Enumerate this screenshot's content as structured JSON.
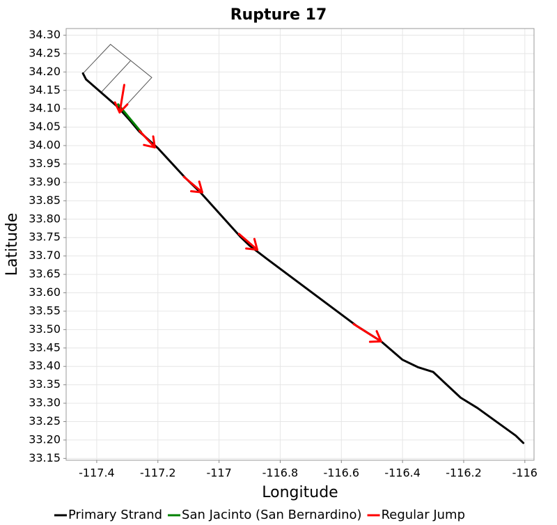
{
  "chart_data": {
    "type": "line",
    "title": "Rupture 17",
    "xlabel": "Longitude",
    "ylabel": "Latitude",
    "xlim": [
      -117.5,
      -115.97
    ],
    "ylim": [
      33.145,
      34.318
    ],
    "x_ticks": [
      -117.4,
      -117.2,
      -117.0,
      -116.8,
      -116.6,
      -116.4,
      -116.2,
      -116.0
    ],
    "x_tick_labels": [
      "-117.4",
      "-117.2",
      "-117",
      "-116.8",
      "-116.6",
      "-116.4",
      "-116.2",
      "-116"
    ],
    "y_ticks": [
      33.15,
      33.2,
      33.25,
      33.3,
      33.35,
      33.4,
      33.45,
      33.5,
      33.55,
      33.6,
      33.65,
      33.7,
      33.75,
      33.8,
      33.85,
      33.9,
      33.95,
      34.0,
      34.05,
      34.1,
      34.15,
      34.2,
      34.25,
      34.3
    ],
    "y_tick_labels": [
      "33.15",
      "33.20",
      "33.25",
      "33.30",
      "33.35",
      "33.40",
      "33.45",
      "33.50",
      "33.55",
      "33.60",
      "33.65",
      "33.70",
      "33.75",
      "33.80",
      "33.85",
      "33.90",
      "33.95",
      "34.00",
      "34.05",
      "34.10",
      "34.15",
      "34.20",
      "34.25",
      "34.30"
    ],
    "grid": true,
    "legend_placement": "bottom",
    "series": [
      {
        "name": "Primary Strand",
        "color": "#000000",
        "points": [
          [
            -117.445,
            34.196
          ],
          [
            -117.435,
            34.18
          ],
          [
            -117.33,
            34.104
          ],
          [
            -117.292,
            34.069
          ],
          [
            -117.262,
            34.039
          ],
          [
            -117.2,
            33.993
          ],
          [
            -117.11,
            33.912
          ],
          [
            -117.06,
            33.872
          ],
          [
            -116.93,
            33.752
          ],
          [
            -116.9,
            33.728
          ],
          [
            -116.84,
            33.69
          ],
          [
            -116.55,
            33.51
          ],
          [
            -116.47,
            33.468
          ],
          [
            -116.4,
            33.418
          ],
          [
            -116.35,
            33.398
          ],
          [
            -116.3,
            33.385
          ],
          [
            -116.21,
            33.315
          ],
          [
            -116.155,
            33.287
          ],
          [
            -116.09,
            33.248
          ],
          [
            -116.03,
            33.212
          ],
          [
            -116.005,
            33.192
          ]
        ]
      },
      {
        "name": "San Jacinto (San Bernardino)",
        "color": "#008000",
        "points": [
          [
            -117.33,
            34.112
          ],
          [
            -117.255,
            34.037
          ]
        ]
      },
      {
        "name": "Regular Jump",
        "color": "#ff0000",
        "jumps": [
          [
            [
              -117.31,
              34.165
            ],
            [
              -117.325,
              34.09
            ]
          ],
          [
            [
              -117.26,
              34.04
            ],
            [
              -117.21,
              33.995
            ]
          ],
          [
            [
              -117.115,
              33.915
            ],
            [
              -117.055,
              33.873
            ]
          ],
          [
            [
              -116.935,
              33.76
            ],
            [
              -116.875,
              33.717
            ]
          ],
          [
            [
              -116.56,
              33.515
            ],
            [
              -116.47,
              33.468
            ]
          ]
        ]
      }
    ],
    "outlines": [
      [
        [
          -117.445,
          34.196
        ],
        [
          -117.355,
          34.275
        ],
        [
          -117.22,
          34.185
        ],
        [
          -117.31,
          34.104
        ]
      ],
      [
        [
          -117.385,
          34.145
        ],
        [
          -117.29,
          34.23
        ]
      ]
    ]
  }
}
